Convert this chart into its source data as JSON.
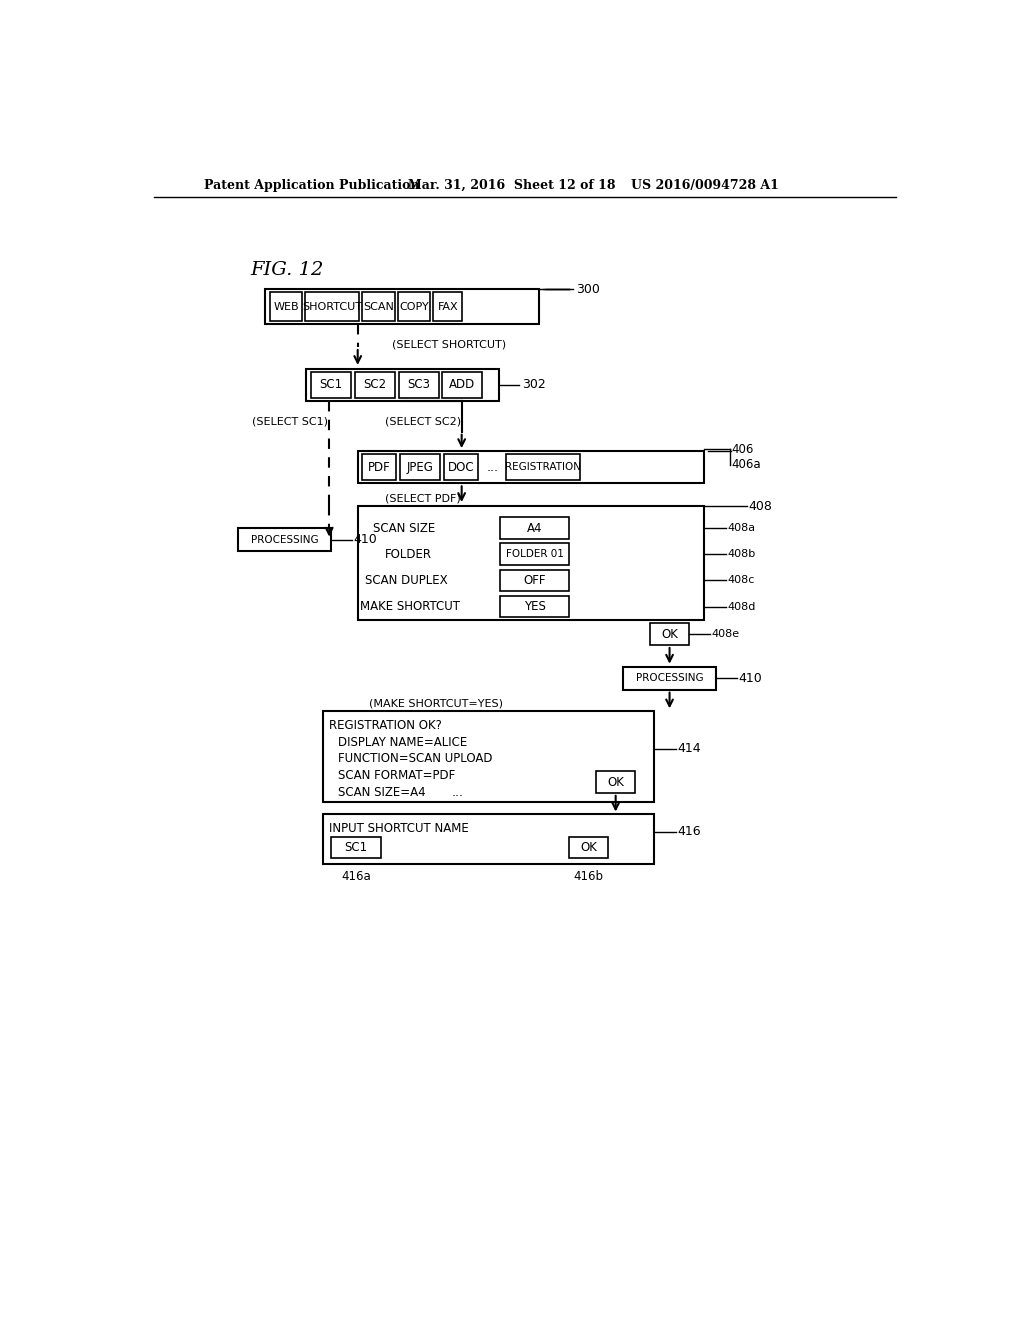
{
  "header_left": "Patent Application Publication",
  "header_mid": "Mar. 31, 2016  Sheet 12 of 18",
  "header_right": "US 2016/0094728 A1",
  "fig_label": "FIG. 12",
  "bg_color": "#ffffff",
  "text_color": "#000000"
}
